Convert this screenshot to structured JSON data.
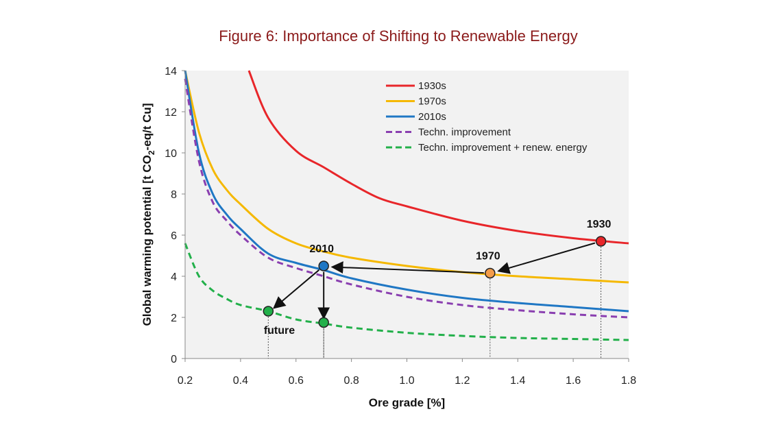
{
  "figure": {
    "title": "Figure 6: Importance of Shifting to Renewable Energy"
  },
  "chart_data": {
    "type": "line",
    "xlabel": "Ore grade [%]",
    "ylabel": {
      "prefix": "Global warming potential [t CO",
      "subscript": "2",
      "suffix": "-eq/t Cu]"
    },
    "xlim": [
      0.2,
      1.8
    ],
    "ylim": [
      0,
      14
    ],
    "xticks": [
      "0.2",
      "0.4",
      "0.6",
      "0.8",
      "1.0",
      "1.2",
      "1.4",
      "1.6",
      "1.8"
    ],
    "yticks": [
      "0",
      "2",
      "4",
      "6",
      "8",
      "10",
      "12",
      "14"
    ],
    "grid": false,
    "legend_position": "top-right",
    "series": [
      {
        "name": "1930s",
        "color": "#e8262a",
        "dash": false,
        "x": [
          0.43,
          0.5,
          0.6,
          0.7,
          0.8,
          0.9,
          1.0,
          1.2,
          1.4,
          1.6,
          1.8
        ],
        "y": [
          14.0,
          11.7,
          10.1,
          9.3,
          8.5,
          7.8,
          7.4,
          6.7,
          6.2,
          5.85,
          5.6
        ]
      },
      {
        "name": "1970s",
        "color": "#f5b800",
        "dash": false,
        "x": [
          0.2,
          0.25,
          0.3,
          0.35,
          0.4,
          0.5,
          0.6,
          0.7,
          0.8,
          1.0,
          1.2,
          1.4,
          1.6,
          1.8
        ],
        "y": [
          14.0,
          11.0,
          9.2,
          8.2,
          7.5,
          6.3,
          5.6,
          5.2,
          4.9,
          4.5,
          4.2,
          4.0,
          3.85,
          3.7
        ]
      },
      {
        "name": "2010s",
        "color": "#1f77c4",
        "dash": false,
        "x": [
          0.2,
          0.25,
          0.3,
          0.35,
          0.4,
          0.5,
          0.6,
          0.7,
          0.8,
          1.0,
          1.2,
          1.4,
          1.6,
          1.8
        ],
        "y": [
          14.0,
          10.0,
          8.0,
          7.0,
          6.3,
          5.1,
          4.65,
          4.3,
          3.9,
          3.35,
          2.95,
          2.7,
          2.5,
          2.3
        ]
      },
      {
        "name": "Techn. improvement",
        "color": "#8a3fb0",
        "dash": true,
        "x": [
          0.2,
          0.25,
          0.3,
          0.35,
          0.4,
          0.5,
          0.6,
          0.7,
          0.8,
          1.0,
          1.2,
          1.4,
          1.6,
          1.8
        ],
        "y": [
          13.6,
          9.6,
          7.6,
          6.7,
          6.0,
          4.9,
          4.4,
          4.0,
          3.6,
          3.0,
          2.6,
          2.35,
          2.15,
          2.0
        ]
      },
      {
        "name": "Techn. improvement + renew. energy",
        "color": "#22b04a",
        "dash": true,
        "x": [
          0.2,
          0.25,
          0.3,
          0.35,
          0.4,
          0.5,
          0.6,
          0.7,
          0.8,
          1.0,
          1.2,
          1.4,
          1.6,
          1.8
        ],
        "y": [
          5.6,
          4.0,
          3.3,
          2.9,
          2.6,
          2.3,
          1.9,
          1.7,
          1.5,
          1.25,
          1.1,
          1.0,
          0.95,
          0.9
        ]
      }
    ],
    "points": [
      {
        "label": "1930",
        "x": 1.7,
        "y": 5.7,
        "color": "#e8262a"
      },
      {
        "label": "1970",
        "x": 1.3,
        "y": 4.15,
        "color": "#f39c4a"
      },
      {
        "label": "2010",
        "x": 0.7,
        "y": 4.5,
        "color": "#1f77c4"
      },
      {
        "label": "",
        "x": 0.5,
        "y": 2.3,
        "color": "#22b04a"
      },
      {
        "label": "",
        "x": 0.7,
        "y": 1.75,
        "color": "#22b04a"
      }
    ],
    "annotations": [
      {
        "text": "future",
        "x": 0.54,
        "y": 1.2
      }
    ],
    "arrows": [
      {
        "from": [
          1.7,
          5.7
        ],
        "to": [
          1.33,
          4.25
        ]
      },
      {
        "from": [
          1.3,
          4.15
        ],
        "to": [
          0.73,
          4.45
        ]
      },
      {
        "from": [
          0.7,
          4.5
        ],
        "to": [
          0.52,
          2.45
        ]
      },
      {
        "from": [
          0.7,
          4.5
        ],
        "to": [
          0.7,
          1.95
        ]
      }
    ]
  }
}
